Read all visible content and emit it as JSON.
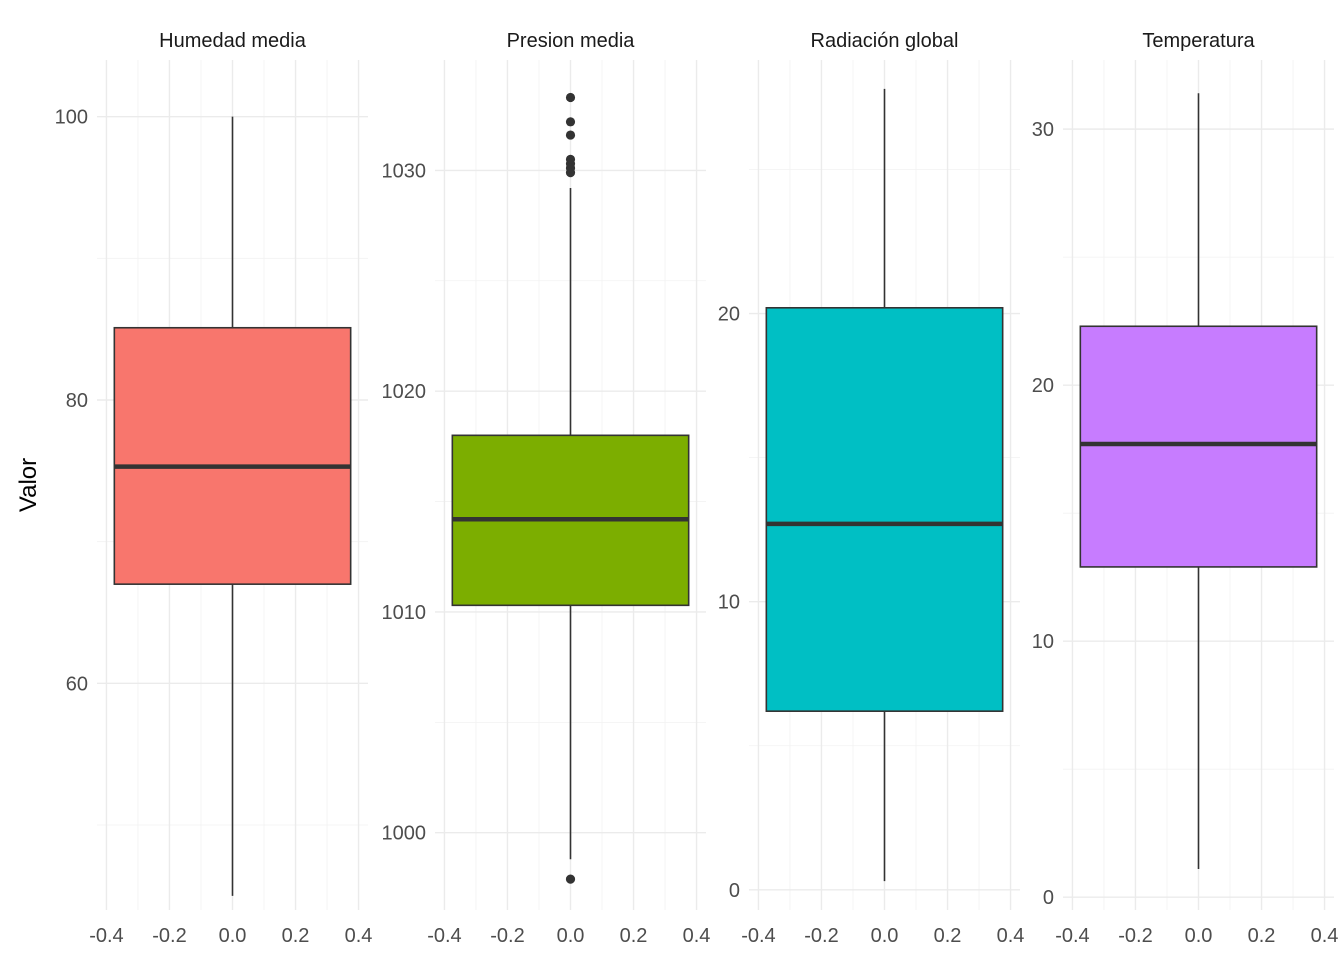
{
  "chart_data": {
    "type": "boxplot",
    "ylabel": "Valor",
    "x_ticks": [
      -0.4,
      -0.2,
      0.0,
      0.2,
      0.4
    ],
    "x_tick_labels": [
      "-0.4",
      "-0.2",
      "0.0",
      "0.2",
      "0.4"
    ],
    "xlim": [
      -0.4,
      0.4
    ],
    "grid": true,
    "panels": [
      {
        "name": "Humedad media",
        "color": "#F8766D",
        "ylim": [
          44,
          104
        ],
        "y_ticks": [
          60,
          80,
          100
        ],
        "y_tick_labels": [
          "60",
          "80",
          "100"
        ],
        "y_minor": [
          50,
          70,
          90
        ],
        "min": 45,
        "q1": 67,
        "median": 75.3,
        "q3": 85.1,
        "max": 100,
        "outliers": []
      },
      {
        "name": "Presion media",
        "color": "#7CAE00",
        "ylim": [
          996.5,
          1035
        ],
        "y_ticks": [
          1000,
          1010,
          1020,
          1030
        ],
        "y_tick_labels": [
          "1000",
          "1010",
          "1020",
          "1030"
        ],
        "y_minor": [
          1005,
          1015,
          1025
        ],
        "min": 998.8,
        "q1": 1010.3,
        "median": 1014.2,
        "q3": 1018.0,
        "max": 1029.2,
        "outliers": [
          997.9,
          1029.9,
          1030.1,
          1030.3,
          1030.5,
          1031.6,
          1032.2,
          1033.3
        ]
      },
      {
        "name": "Radiación global",
        "color": "#00BFC4",
        "ylim": [
          -0.7,
          28.8
        ],
        "y_ticks": [
          0,
          10,
          20
        ],
        "y_tick_labels": [
          "0",
          "10",
          "20"
        ],
        "y_minor": [
          5,
          15,
          25
        ],
        "min": 0.3,
        "q1": 6.2,
        "median": 12.7,
        "q3": 20.2,
        "max": 27.8,
        "outliers": []
      },
      {
        "name": "Temperatura",
        "color": "#C77CFF",
        "ylim": [
          -0.5,
          32.7
        ],
        "y_ticks": [
          0,
          10,
          20,
          30
        ],
        "y_tick_labels": [
          "0",
          "10",
          "20",
          "30"
        ],
        "y_minor": [
          5,
          15,
          25
        ],
        "min": 1.1,
        "q1": 12.9,
        "median": 17.7,
        "q3": 22.3,
        "max": 31.4,
        "outliers": []
      }
    ]
  }
}
